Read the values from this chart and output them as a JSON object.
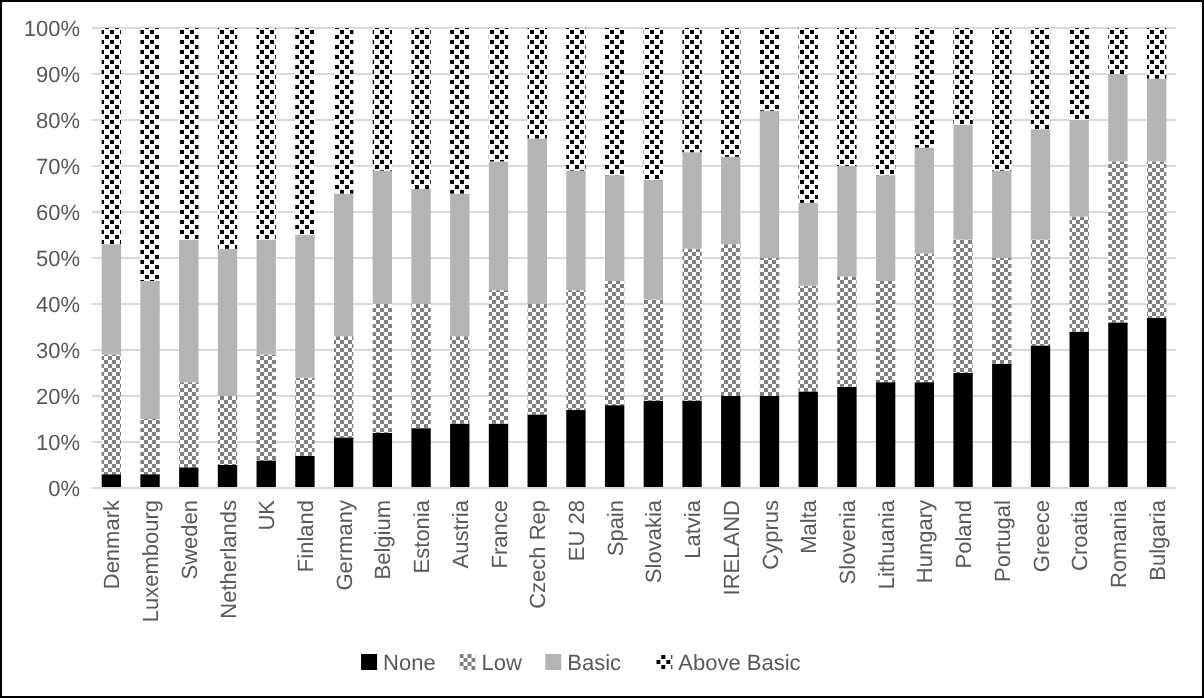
{
  "chart_data": {
    "type": "bar",
    "stacked": true,
    "categories": [
      "Denmark",
      "Luxembourg",
      "Sweden",
      "Netherlands",
      "UK",
      "Finland",
      "Germany",
      "Belgium",
      "Estonia",
      "Austria",
      "France",
      "Czech Rep",
      "EU 28",
      "Spain",
      "Slovakia",
      "Latvia",
      "IRELAND",
      "Cyprus",
      "Malta",
      "Slovenia",
      "Lithuania",
      "Hungary",
      "Poland",
      "Portugal",
      "Greece",
      "Croatia",
      "Romania",
      "Bulgaria"
    ],
    "series": [
      {
        "name": "None",
        "color": "#000000",
        "values": [
          3,
          3,
          4.5,
          5,
          6,
          7,
          11,
          12,
          13,
          14,
          14,
          16,
          17,
          18,
          19,
          19,
          20,
          20,
          21,
          22,
          23,
          23,
          25,
          27,
          31,
          34,
          36,
          37
        ]
      },
      {
        "name": "Low",
        "color": "#808080",
        "values": [
          26,
          12,
          18.5,
          15,
          23,
          17,
          22,
          28,
          27,
          19,
          29,
          24,
          26,
          27,
          22,
          33,
          33,
          30,
          23,
          24,
          22,
          28,
          29,
          23,
          23,
          25,
          35,
          34
        ]
      },
      {
        "name": "Basic",
        "color": "#b4b4b4",
        "values": [
          24,
          30,
          31,
          32,
          25,
          31,
          31,
          29,
          25,
          31,
          28,
          36,
          26,
          23,
          26,
          21,
          19,
          32,
          18,
          24,
          23,
          23,
          25,
          19,
          24,
          21,
          19,
          18
        ]
      },
      {
        "name": "Above Basic",
        "color": "#000000",
        "values": [
          47,
          55,
          46,
          48,
          46,
          45,
          36,
          31,
          35,
          36,
          29,
          24,
          31,
          32,
          33,
          27,
          28,
          18,
          38,
          30,
          32,
          26,
          21,
          31,
          22,
          20,
          10,
          11
        ]
      }
    ],
    "ylim": [
      0,
      100
    ],
    "yticks": [
      {
        "value": 0,
        "label": "0%"
      },
      {
        "value": 10,
        "label": "10%"
      },
      {
        "value": 20,
        "label": "20%"
      },
      {
        "value": 30,
        "label": "30%"
      },
      {
        "value": 40,
        "label": "40%"
      },
      {
        "value": 50,
        "label": "50%"
      },
      {
        "value": 60,
        "label": "60%"
      },
      {
        "value": 70,
        "label": "70%"
      },
      {
        "value": 80,
        "label": "80%"
      },
      {
        "value": 90,
        "label": "90%"
      },
      {
        "value": 100,
        "label": "100%"
      }
    ],
    "grid": "y",
    "legend": "bottom"
  }
}
